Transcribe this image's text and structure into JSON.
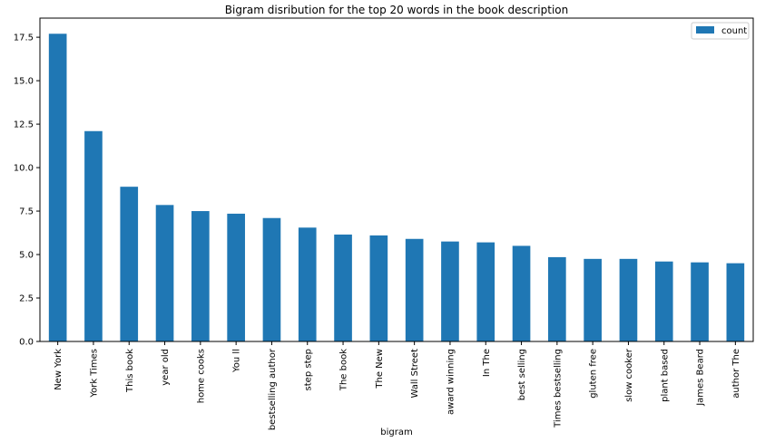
{
  "chart_data": {
    "type": "bar",
    "title": "Bigram disribution for the top 20 words in the book description",
    "xlabel": "bigram",
    "ylabel": "",
    "ylim": [
      0,
      18.6
    ],
    "yticks": [
      "0.0",
      "2.5",
      "5.0",
      "7.5",
      "10.0",
      "12.5",
      "15.0",
      "17.5"
    ],
    "legend_position": "top-right",
    "series": [
      {
        "name": "count",
        "color": "#1f77b4",
        "values": [
          17.7,
          12.1,
          8.9,
          7.85,
          7.5,
          7.35,
          7.1,
          6.55,
          6.15,
          6.1,
          5.9,
          5.75,
          5.7,
          5.5,
          4.85,
          4.75,
          4.75,
          4.6,
          4.55,
          4.5
        ]
      }
    ],
    "categories": [
      "New York",
      "York Times",
      "This book",
      "year old",
      "home cooks",
      "You ll",
      "bestselling author",
      "step step",
      "The book",
      "The New",
      "Wall Street",
      "award winning",
      "In The",
      "best selling",
      "Times bestselling",
      "gluten free",
      "slow cooker",
      "plant based",
      "James Beard",
      "author The"
    ]
  }
}
